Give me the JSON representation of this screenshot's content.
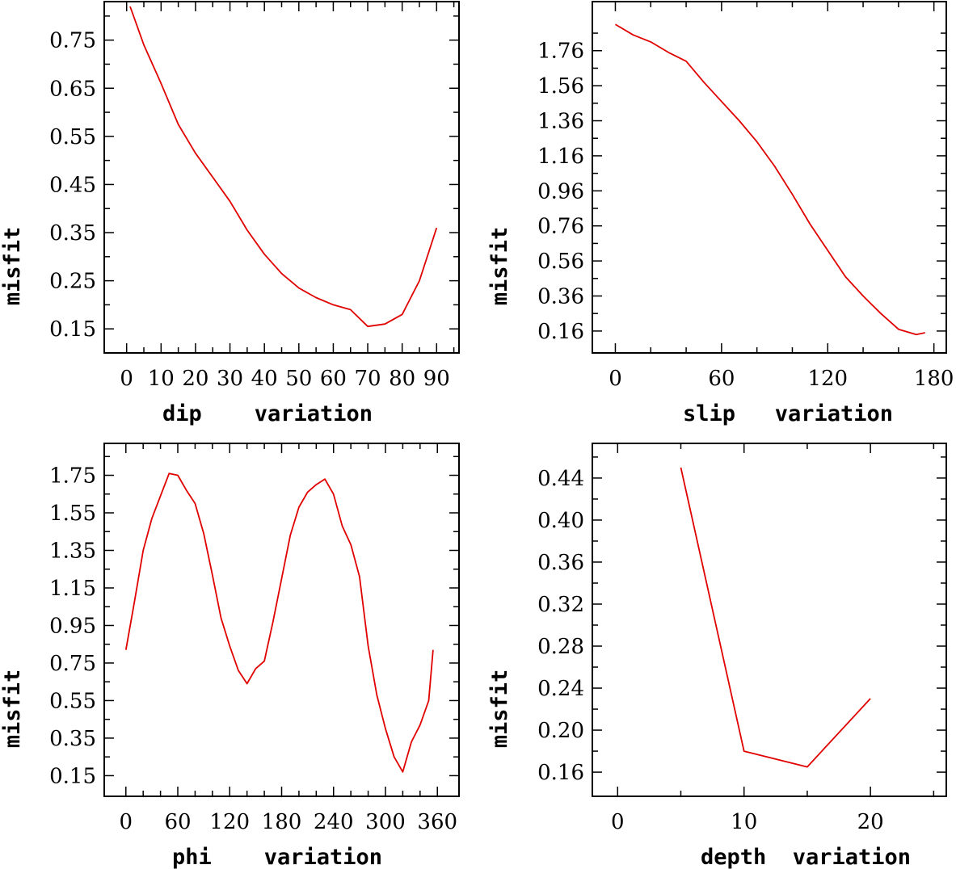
{
  "chart_data": [
    {
      "type": "line",
      "xlabel": "dip    variation",
      "ylabel": "misfit",
      "xlim": [
        -6.5,
        96.5
      ],
      "ylim": [
        0.1,
        0.83
      ],
      "xticks": [
        0,
        10,
        20,
        30,
        40,
        50,
        60,
        70,
        80,
        90
      ],
      "xtick_labels": [
        "0",
        "10",
        "20",
        "30",
        "40",
        "50",
        "60",
        "70",
        "80",
        "90"
      ],
      "xminor": [
        5,
        15,
        25,
        35,
        45,
        55,
        65,
        75,
        85,
        95
      ],
      "yticks": [
        0.15,
        0.25,
        0.35,
        0.45,
        0.55,
        0.65,
        0.75
      ],
      "ytick_labels": [
        "0.15",
        "0.25",
        "0.35",
        "0.45",
        "0.55",
        "0.65",
        "0.75"
      ],
      "yminor": [
        0.2,
        0.3,
        0.4,
        0.5,
        0.6,
        0.7,
        0.8
      ],
      "series": [
        {
          "name": "misfit",
          "color": "#e00000",
          "x": [
            1,
            5,
            10,
            15,
            20,
            25,
            30,
            35,
            40,
            45,
            50,
            55,
            60,
            65,
            70,
            75,
            80,
            85,
            90
          ],
          "y": [
            0.82,
            0.74,
            0.66,
            0.575,
            0.515,
            0.465,
            0.415,
            0.355,
            0.305,
            0.265,
            0.235,
            0.215,
            0.2,
            0.19,
            0.155,
            0.16,
            0.18,
            0.25,
            0.36
          ]
        }
      ]
    },
    {
      "type": "line",
      "xlabel": "slip   variation",
      "ylabel": "misfit",
      "xlim": [
        -13,
        187
      ],
      "ylim": [
        0.035,
        2.04
      ],
      "xticks": [
        0,
        60,
        120,
        180
      ],
      "xtick_labels": [
        "0",
        "60",
        "120",
        "180"
      ],
      "xminor": [
        20,
        40,
        80,
        100,
        140,
        160
      ],
      "yticks": [
        0.16,
        0.36,
        0.56,
        0.76,
        0.96,
        1.16,
        1.36,
        1.56,
        1.76
      ],
      "ytick_labels": [
        "0.16",
        "0.36",
        "0.56",
        "0.76",
        "0.96",
        "1.16",
        "1.36",
        "1.56",
        "1.76"
      ],
      "yminor": [
        0.26,
        0.46,
        0.66,
        0.86,
        1.06,
        1.26,
        1.46,
        1.66,
        1.86
      ],
      "series": [
        {
          "name": "misfit",
          "color": "#e00000",
          "x": [
            0,
            10,
            20,
            30,
            40,
            50,
            60,
            70,
            80,
            90,
            100,
            110,
            120,
            130,
            140,
            150,
            160,
            170,
            175
          ],
          "y": [
            1.91,
            1.85,
            1.81,
            1.75,
            1.7,
            1.58,
            1.47,
            1.36,
            1.24,
            1.1,
            0.94,
            0.77,
            0.62,
            0.47,
            0.36,
            0.26,
            0.17,
            0.14,
            0.15
          ]
        }
      ]
    },
    {
      "type": "line",
      "xlabel": "phi    variation",
      "ylabel": "misfit",
      "xlim": [
        -25,
        385
      ],
      "ylim": [
        0.04,
        1.92
      ],
      "xticks": [
        0,
        60,
        120,
        180,
        240,
        300,
        360
      ],
      "xtick_labels": [
        "0",
        "60",
        "120",
        "180",
        "240",
        "300",
        "360"
      ],
      "xminor": [
        20,
        40,
        80,
        100,
        140,
        160,
        200,
        220,
        260,
        280,
        320,
        340
      ],
      "yticks": [
        0.15,
        0.35,
        0.55,
        0.75,
        0.95,
        1.15,
        1.35,
        1.55,
        1.75
      ],
      "ytick_labels": [
        "0.15",
        "0.35",
        "0.55",
        "0.75",
        "0.95",
        "1.15",
        "1.35",
        "1.55",
        "1.75"
      ],
      "yminor": [
        0.25,
        0.45,
        0.65,
        0.85,
        1.05,
        1.25,
        1.45,
        1.65,
        1.85
      ],
      "series": [
        {
          "name": "misfit",
          "color": "#e00000",
          "x": [
            0,
            10,
            20,
            30,
            40,
            50,
            60,
            70,
            80,
            90,
            100,
            110,
            120,
            130,
            140,
            150,
            160,
            170,
            180,
            190,
            200,
            210,
            220,
            230,
            240,
            250,
            260,
            270,
            280,
            290,
            300,
            310,
            320,
            330,
            340,
            350,
            355
          ],
          "y": [
            0.82,
            1.08,
            1.35,
            1.52,
            1.64,
            1.76,
            1.75,
            1.67,
            1.6,
            1.44,
            1.22,
            0.99,
            0.84,
            0.71,
            0.64,
            0.72,
            0.76,
            0.97,
            1.2,
            1.43,
            1.58,
            1.66,
            1.7,
            1.73,
            1.65,
            1.48,
            1.38,
            1.21,
            0.84,
            0.58,
            0.4,
            0.25,
            0.17,
            0.33,
            0.42,
            0.55,
            0.82
          ]
        }
      ]
    },
    {
      "type": "line",
      "xlabel": "depth  variation",
      "ylabel": "misfit",
      "xlim": [
        -2,
        26
      ],
      "ylim": [
        0.137,
        0.473
      ],
      "xticks": [
        0,
        10,
        20
      ],
      "xtick_labels": [
        "0",
        "10",
        "20"
      ],
      "xminor": [
        5,
        15,
        25
      ],
      "yticks": [
        0.16,
        0.2,
        0.24,
        0.28,
        0.32,
        0.36,
        0.4,
        0.44
      ],
      "ytick_labels": [
        "0.16",
        "0.20",
        "0.24",
        "0.28",
        "0.32",
        "0.36",
        "0.40",
        "0.44"
      ],
      "yminor": [
        0.18,
        0.22,
        0.26,
        0.3,
        0.34,
        0.38,
        0.42,
        0.46
      ],
      "series": [
        {
          "name": "misfit",
          "color": "#e00000",
          "x": [
            5,
            10,
            15,
            20
          ],
          "y": [
            0.45,
            0.18,
            0.165,
            0.23
          ]
        }
      ]
    }
  ]
}
